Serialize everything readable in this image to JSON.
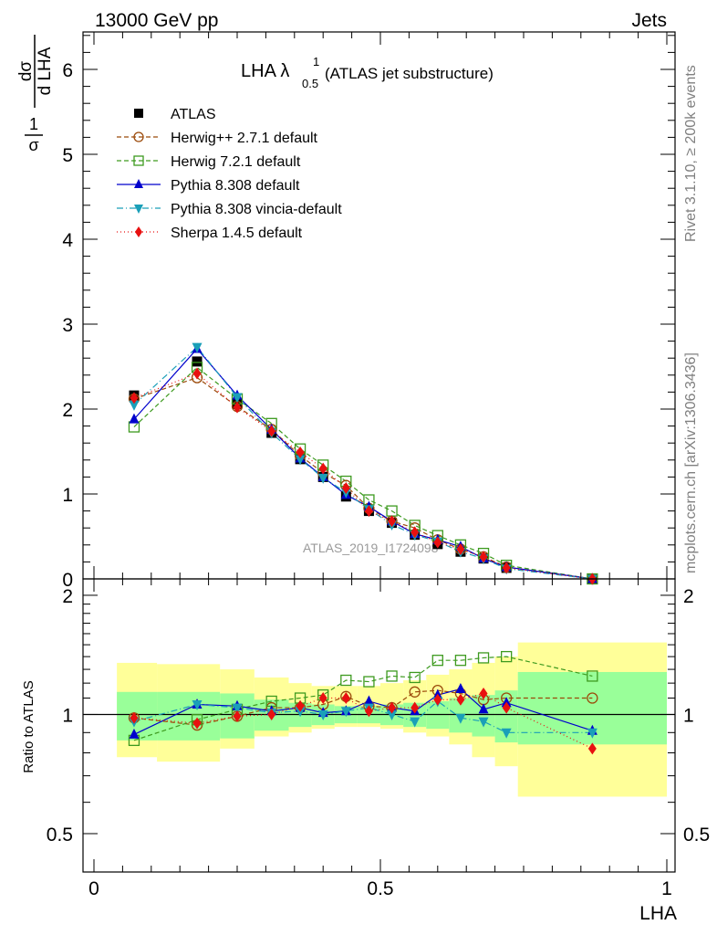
{
  "header": {
    "left": "13000 GeV pp",
    "right": "Jets"
  },
  "side_labels": {
    "rivet": "Rivet 3.1.10, ≥ 200k events",
    "mcplots": "mcplots.cern.ch [arXiv:1306.3436]"
  },
  "watermark": "ATLAS_2019_I1724098",
  "chart_data": {
    "type": "scatter",
    "title": {
      "main": "LHA λ",
      "sup": "1",
      "sub": "0.5",
      "rest": "(ATLAS jet substructure)"
    },
    "xlabel": "LHA",
    "ylabel": {
      "prefix": "1",
      "prefix_den": "σ",
      "num": "dσ",
      "den": "d LHA"
    },
    "ratio_ylabel": "Ratio to ATLAS",
    "xlim": [
      0,
      1
    ],
    "ylim": [
      0,
      6.5
    ],
    "ratio_ylim": [
      0.4,
      2.2
    ],
    "x_ticks": [
      "0",
      "0.5",
      "1"
    ],
    "y_ticks": [
      "0",
      "1",
      "2",
      "3",
      "4",
      "5",
      "6"
    ],
    "ratio_ticks": [
      "0.5",
      "1",
      "2"
    ],
    "bins": [
      [
        0.04,
        0.11
      ],
      [
        0.11,
        0.22
      ],
      [
        0.22,
        0.28
      ],
      [
        0.28,
        0.34
      ],
      [
        0.34,
        0.38
      ],
      [
        0.38,
        0.42
      ],
      [
        0.42,
        0.46
      ],
      [
        0.46,
        0.5
      ],
      [
        0.5,
        0.54
      ],
      [
        0.54,
        0.58
      ],
      [
        0.58,
        0.62
      ],
      [
        0.62,
        0.66
      ],
      [
        0.66,
        0.7
      ],
      [
        0.7,
        0.74
      ],
      [
        0.74,
        1.0
      ]
    ],
    "x": [
      0.07,
      0.18,
      0.25,
      0.31,
      0.36,
      0.4,
      0.44,
      0.48,
      0.52,
      0.56,
      0.6,
      0.64,
      0.68,
      0.72,
      0.87
    ],
    "uncertainty_bands": {
      "inner": [
        [
          0.86,
          1.14
        ],
        [
          0.86,
          1.14
        ],
        [
          0.87,
          1.13
        ],
        [
          0.91,
          1.09
        ],
        [
          0.93,
          1.07
        ],
        [
          0.94,
          1.06
        ],
        [
          0.95,
          1.05
        ],
        [
          0.95,
          1.05
        ],
        [
          0.94,
          1.06
        ],
        [
          0.93,
          1.07
        ],
        [
          0.92,
          1.08
        ],
        [
          0.9,
          1.1
        ],
        [
          0.88,
          1.12
        ],
        [
          0.85,
          1.15
        ],
        [
          0.84,
          1.28
        ]
      ],
      "outer": [
        [
          0.78,
          1.35
        ],
        [
          0.76,
          1.34
        ],
        [
          0.82,
          1.3
        ],
        [
          0.88,
          1.24
        ],
        [
          0.9,
          1.2
        ],
        [
          0.92,
          1.18
        ],
        [
          0.93,
          1.18
        ],
        [
          0.93,
          1.18
        ],
        [
          0.92,
          1.2
        ],
        [
          0.9,
          1.22
        ],
        [
          0.88,
          1.26
        ],
        [
          0.84,
          1.3
        ],
        [
          0.78,
          1.35
        ],
        [
          0.74,
          1.4
        ],
        [
          0.62,
          1.52
        ]
      ]
    },
    "series": [
      {
        "name": "ATLAS",
        "color": "#000000",
        "marker": "filled-square",
        "line": "none",
        "values": [
          2.16,
          2.56,
          2.06,
          1.72,
          1.41,
          1.2,
          0.97,
          0.8,
          0.66,
          0.52,
          0.41,
          0.32,
          0.24,
          0.13,
          0.0
        ],
        "ratio": [
          1.0,
          1.0,
          1.0,
          1.0,
          1.0,
          1.0,
          1.0,
          1.0,
          1.0,
          1.0,
          1.0,
          1.0,
          1.0,
          1.0,
          1.0
        ]
      },
      {
        "name": "Herwig++ 2.7.1 default",
        "color": "#9b4a0a",
        "marker": "open-circle",
        "line": "5,3",
        "values": [
          2.12,
          2.37,
          2.03,
          1.76,
          1.45,
          1.25,
          1.1,
          0.83,
          0.68,
          0.6,
          0.46,
          0.35,
          0.26,
          0.14,
          0.0
        ],
        "ratio": [
          0.98,
          0.94,
          0.99,
          1.04,
          1.04,
          1.06,
          1.11,
          1.05,
          1.04,
          1.14,
          1.15,
          1.13,
          1.09,
          1.1,
          1.1
        ]
      },
      {
        "name": "Herwig 7.2.1 default",
        "color": "#3d9a1f",
        "marker": "open-square",
        "line": "5,3",
        "values": [
          1.79,
          2.49,
          2.12,
          1.83,
          1.53,
          1.34,
          1.15,
          0.93,
          0.8,
          0.63,
          0.51,
          0.4,
          0.3,
          0.16,
          0.0
        ],
        "ratio": [
          0.86,
          0.97,
          1.03,
          1.08,
          1.1,
          1.12,
          1.22,
          1.21,
          1.25,
          1.24,
          1.37,
          1.37,
          1.39,
          1.4,
          1.25
        ]
      },
      {
        "name": "Pythia 8.308 default",
        "color": "#0000cc",
        "marker": "filled-triangle-up",
        "line": "solid",
        "values": [
          1.88,
          2.71,
          2.16,
          1.76,
          1.42,
          1.2,
          0.99,
          0.85,
          0.68,
          0.53,
          0.46,
          0.38,
          0.24,
          0.14,
          0.0
        ],
        "ratio": [
          0.89,
          1.06,
          1.05,
          1.02,
          1.04,
          1.01,
          1.02,
          1.08,
          1.04,
          1.02,
          1.12,
          1.16,
          1.03,
          1.07,
          0.91
        ]
      },
      {
        "name": "Pythia 8.308 vincia-default",
        "color": "#1a9fb8",
        "marker": "filled-triangle-down",
        "line": "7,3,1,3",
        "values": [
          2.05,
          2.73,
          2.14,
          1.72,
          1.41,
          1.19,
          1.02,
          0.82,
          0.64,
          0.52,
          0.44,
          0.32,
          0.24,
          0.12,
          0.0
        ],
        "ratio": [
          0.96,
          1.06,
          1.04,
          1.01,
          1.02,
          1.0,
          1.02,
          1.04,
          1.0,
          0.96,
          1.08,
          0.98,
          0.96,
          0.9,
          0.9
        ]
      },
      {
        "name": "Sherpa 1.4.5 default",
        "color": "#e81010",
        "marker": "filled-diamond",
        "line": "1,3",
        "values": [
          2.13,
          2.42,
          2.02,
          1.74,
          1.49,
          1.3,
          1.07,
          0.8,
          0.68,
          0.55,
          0.43,
          0.35,
          0.26,
          0.13,
          0.0
        ],
        "ratio": [
          0.98,
          0.95,
          0.99,
          1.0,
          1.05,
          1.1,
          1.1,
          1.02,
          1.04,
          1.04,
          1.09,
          1.09,
          1.13,
          1.04,
          0.82
        ]
      }
    ]
  }
}
